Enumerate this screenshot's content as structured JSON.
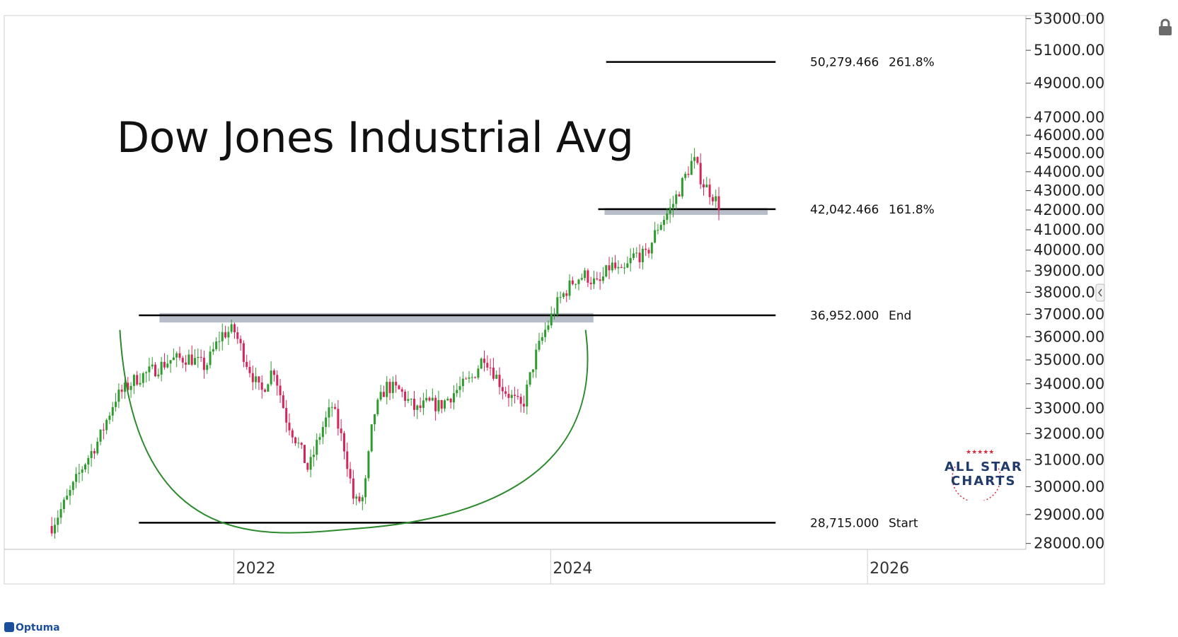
{
  "title": "Dow Jones Industrial Avg",
  "logo": {
    "line1": "ALL STAR",
    "line2": "CHARTS"
  },
  "brand": "Optuma",
  "colors": {
    "up": "#2e9b2e",
    "down": "#d6255a",
    "cup": "#2b8a2b",
    "zone": "#aab3bf",
    "level": "#000000"
  },
  "chart_data": {
    "type": "candlestick",
    "title": "Dow Jones Industrial Avg",
    "y_scale": "log",
    "ylim": [
      27800,
      53200
    ],
    "xlim": [
      2020.55,
      2027.0
    ],
    "y_ticks": [
      "53000.00",
      "51000.00",
      "49000.00",
      "47000.00",
      "46000.00",
      "45000.00",
      "44000.00",
      "43000.00",
      "42000.00",
      "41000.00",
      "40000.00",
      "39000.00",
      "38000.00",
      "37000.00",
      "36000.00",
      "35000.00",
      "34000.00",
      "33000.00",
      "32000.00",
      "31000.00",
      "30000.00",
      "29000.00",
      "28000.00"
    ],
    "x_ticks": [
      "2022",
      "2024",
      "2026"
    ],
    "levels": [
      {
        "value": 50279.466,
        "label": "50,279.466",
        "tag": "261.8%",
        "x_start": 2024.35,
        "x_end": 2025.42
      },
      {
        "value": 42042.466,
        "label": "42,042.466",
        "tag": "161.8%",
        "x_start": 2024.3,
        "x_end": 2025.42
      },
      {
        "value": 36952.0,
        "label": "36,952.000",
        "tag": "End",
        "x_start": 2021.4,
        "x_end": 2025.42
      },
      {
        "value": 28715.0,
        "label": "28,715.000",
        "tag": "Start",
        "x_start": 2021.4,
        "x_end": 2025.42
      }
    ],
    "zones": [
      {
        "x_start": 2021.53,
        "x_end": 2024.27,
        "y_low": 36630,
        "y_high": 37050
      },
      {
        "x_start": 2024.34,
        "x_end": 2025.37,
        "y_low": 41750,
        "y_high": 42100
      }
    ],
    "cup": {
      "x_left": 2021.28,
      "x_right": 2024.22,
      "x_bottom": 2022.75,
      "y_rim": 36300,
      "y_bottom": 28500
    },
    "series": [
      {
        "name": "",
        "anchors": [
          [
            2020.85,
            28600
          ],
          [
            2020.95,
            29600
          ],
          [
            2021.05,
            30800
          ],
          [
            2021.15,
            31800
          ],
          [
            2021.25,
            33400
          ],
          [
            2021.38,
            34200
          ],
          [
            2021.5,
            34600
          ],
          [
            2021.6,
            35000
          ],
          [
            2021.72,
            35100
          ],
          [
            2021.82,
            34700
          ],
          [
            2021.92,
            36100
          ],
          [
            2022.0,
            36300
          ],
          [
            2022.08,
            34900
          ],
          [
            2022.17,
            33600
          ],
          [
            2022.25,
            34700
          ],
          [
            2022.33,
            32600
          ],
          [
            2022.42,
            31400
          ],
          [
            2022.47,
            30600
          ],
          [
            2022.55,
            32100
          ],
          [
            2022.62,
            33100
          ],
          [
            2022.7,
            31400
          ],
          [
            2022.76,
            29400
          ],
          [
            2022.82,
            29600
          ],
          [
            2022.88,
            32700
          ],
          [
            2022.96,
            33900
          ],
          [
            2023.05,
            33700
          ],
          [
            2023.15,
            32900
          ],
          [
            2023.22,
            33200
          ],
          [
            2023.3,
            33100
          ],
          [
            2023.4,
            33700
          ],
          [
            2023.5,
            34200
          ],
          [
            2023.58,
            35200
          ],
          [
            2023.7,
            33800
          ],
          [
            2023.82,
            33000
          ],
          [
            2023.9,
            35100
          ],
          [
            2023.96,
            36200
          ],
          [
            2024.05,
            37600
          ],
          [
            2024.15,
            38600
          ],
          [
            2024.22,
            38800
          ],
          [
            2024.3,
            38300
          ],
          [
            2024.38,
            39300
          ],
          [
            2024.45,
            38800
          ],
          [
            2024.53,
            39800
          ],
          [
            2024.6,
            39700
          ],
          [
            2024.68,
            41200
          ],
          [
            2024.76,
            42100
          ],
          [
            2024.82,
            43200
          ],
          [
            2024.9,
            44700
          ],
          [
            2024.96,
            43400
          ],
          [
            2025.02,
            42800
          ],
          [
            2025.08,
            42000
          ]
        ]
      }
    ]
  }
}
